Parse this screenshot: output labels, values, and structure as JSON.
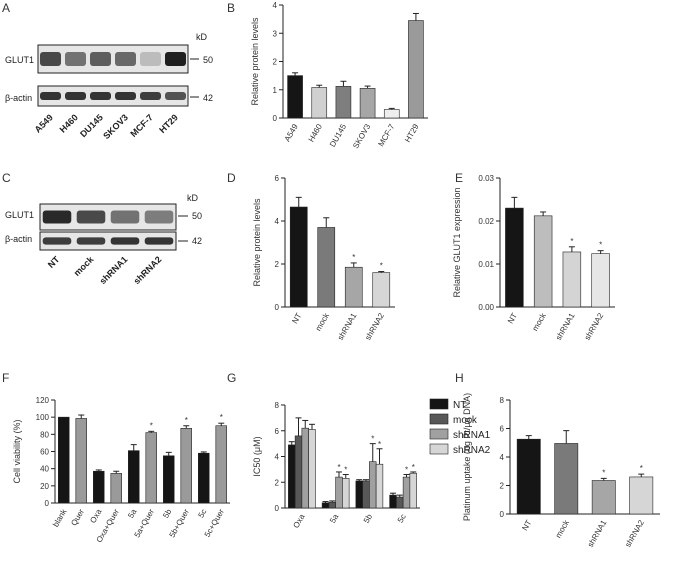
{
  "panels": {
    "A": {
      "letter": "A",
      "kd": "kD",
      "rows": [
        {
          "label": "GLUT1",
          "mw": "50"
        },
        {
          "label": "β-actin",
          "mw": "42"
        }
      ],
      "lanes": [
        "A549",
        "H460",
        "DU145",
        "SKOV3",
        "MCF-7",
        "HT29"
      ],
      "intensity": {
        "GLUT1": [
          0.75,
          0.55,
          0.65,
          0.6,
          0.2,
          0.95
        ],
        "actin": [
          0.85,
          0.85,
          0.85,
          0.85,
          0.8,
          0.7
        ]
      }
    },
    "C": {
      "letter": "C",
      "kd": "kD",
      "rows": [
        {
          "label": "GLUT1",
          "mw": "50"
        },
        {
          "label": "β-actin",
          "mw": "42"
        }
      ],
      "lanes": [
        "NT",
        "mock",
        "shRNA1",
        "shRNA2"
      ],
      "intensity": {
        "GLUT1": [
          0.9,
          0.75,
          0.55,
          0.5
        ],
        "actin": [
          0.8,
          0.8,
          0.85,
          0.85
        ]
      }
    }
  },
  "chart_data": [
    {
      "id": "B",
      "letter": "B",
      "type": "bar",
      "ylabel": "Relative protein levels",
      "ylim": [
        0,
        4
      ],
      "yticks": [
        "0",
        "1",
        "2",
        "3",
        "4"
      ],
      "categories": [
        "A549",
        "H460",
        "DU145",
        "SKOV3",
        "MCF-7",
        "HT29"
      ],
      "values": [
        1.5,
        1.08,
        1.12,
        1.05,
        0.3,
        3.45
      ],
      "errors": [
        0.1,
        0.08,
        0.18,
        0.08,
        0.04,
        0.25
      ],
      "colors": [
        "#151515",
        "#d0d0d0",
        "#7e7e7e",
        "#a6a6a6",
        "#eeeeee",
        "#9a9a9a"
      ]
    },
    {
      "id": "D",
      "letter": "D",
      "type": "bar",
      "ylabel": "Relative protein levels",
      "ylim": [
        0,
        6
      ],
      "yticks": [
        "0",
        "2",
        "4",
        "6"
      ],
      "categories": [
        "NT",
        "mock",
        "shRNA1",
        "shRNA2"
      ],
      "values": [
        4.65,
        3.7,
        1.85,
        1.6
      ],
      "errors": [
        0.45,
        0.45,
        0.2,
        0.05
      ],
      "sig": [
        "",
        "",
        "*",
        "*"
      ],
      "colors": [
        "#151515",
        "#7a7a7a",
        "#a6a6a6",
        "#d6d6d6"
      ]
    },
    {
      "id": "E",
      "letter": "E",
      "type": "bar",
      "ylabel": "Relative GLUT1 expression",
      "ylim": [
        0,
        0.03
      ],
      "yticks": [
        "0.00",
        "0.01",
        "0.02",
        "0.03"
      ],
      "categories": [
        "NT",
        "mock",
        "shRNA1",
        "shRNA2"
      ],
      "values": [
        0.023,
        0.0212,
        0.0128,
        0.0124
      ],
      "errors": [
        0.0025,
        0.0009,
        0.0012,
        0.0007
      ],
      "sig": [
        "",
        "",
        "*",
        "*"
      ],
      "colors": [
        "#151515",
        "#bdbdbd",
        "#d4d4d4",
        "#e6e6e6"
      ]
    },
    {
      "id": "F",
      "letter": "F",
      "type": "bar",
      "ylabel": "Cell viability (%)",
      "ylim": [
        0,
        120
      ],
      "yticks": [
        "0",
        "20",
        "40",
        "60",
        "80",
        "100",
        "120"
      ],
      "categories": [
        "blank",
        "Quer",
        "Oxa",
        "Oxa+Quer",
        "5a",
        "5a+Quer",
        "5b",
        "5b+Quer",
        "5c",
        "5c+Quer"
      ],
      "values": [
        100,
        98.5,
        37,
        34.5,
        61,
        82,
        55,
        87,
        58,
        90
      ],
      "errors": [
        0,
        4,
        1.5,
        2.5,
        7,
        1.5,
        4,
        3,
        1.5,
        3
      ],
      "sig": [
        "",
        "",
        "",
        "",
        "",
        "*",
        "",
        "*",
        "",
        "*"
      ],
      "colors": [
        "#151515",
        "#9a9a9a",
        "#151515",
        "#9a9a9a",
        "#151515",
        "#9a9a9a",
        "#151515",
        "#9a9a9a",
        "#151515",
        "#9a9a9a"
      ]
    },
    {
      "id": "G",
      "letter": "G",
      "type": "bar",
      "ylabel": "IC50 (μM)",
      "ylim": [
        0,
        8
      ],
      "yticks": [
        "0",
        "2",
        "4",
        "6",
        "8"
      ],
      "categories": [
        "Oxa",
        "5a",
        "5b",
        "5c"
      ],
      "series": [
        {
          "name": "NT",
          "color": "#151515",
          "values": [
            4.9,
            0.4,
            2.1,
            1.0
          ],
          "errors": [
            0.25,
            0.1,
            0.1,
            0.15
          ],
          "sig": [
            "",
            "",
            "",
            ""
          ]
        },
        {
          "name": "mock",
          "color": "#585858",
          "values": [
            5.6,
            0.45,
            2.1,
            0.85
          ],
          "errors": [
            1.4,
            0.1,
            0.1,
            0.15
          ],
          "sig": [
            "",
            "",
            "",
            ""
          ]
        },
        {
          "name": "shRNA1",
          "color": "#a0a0a0",
          "values": [
            6.2,
            2.4,
            3.6,
            2.4
          ],
          "errors": [
            0.6,
            0.4,
            1.4,
            0.2
          ],
          "sig": [
            "",
            "*",
            "*",
            "*"
          ]
        },
        {
          "name": "shRNA2",
          "color": "#d6d6d6",
          "values": [
            6.1,
            2.3,
            3.4,
            2.7
          ],
          "errors": [
            0.4,
            0.3,
            1.2,
            0.1
          ],
          "sig": [
            "",
            "*",
            "*",
            "*"
          ]
        }
      ]
    },
    {
      "id": "H",
      "letter": "H",
      "type": "bar",
      "ylabel": "Platinum uptake (ng Pt/μg DNA)",
      "ylim": [
        0,
        8
      ],
      "yticks": [
        "0",
        "2",
        "4",
        "6",
        "8"
      ],
      "categories": [
        "NT",
        "mock",
        "shRNA1",
        "shRNA2"
      ],
      "values": [
        5.25,
        4.95,
        2.35,
        2.6
      ],
      "errors": [
        0.25,
        0.9,
        0.15,
        0.2
      ],
      "sig": [
        "",
        "",
        "*",
        "*"
      ],
      "colors": [
        "#151515",
        "#7a7a7a",
        "#a6a6a6",
        "#d6d6d6"
      ]
    }
  ]
}
